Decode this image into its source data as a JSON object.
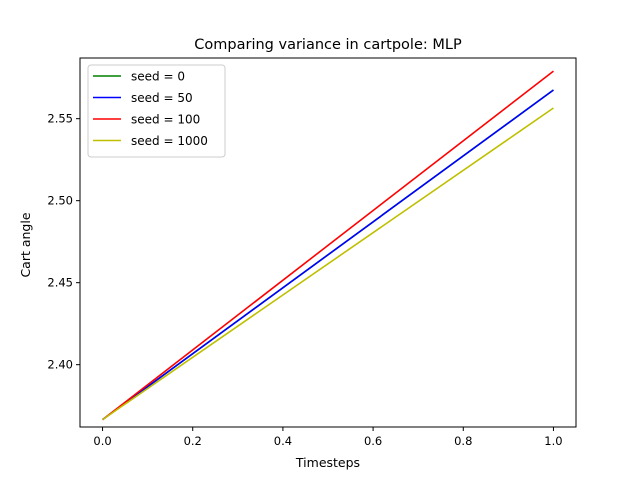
{
  "chart_data": {
    "type": "line",
    "title": "Comparing variance in cartpole: MLP",
    "xlabel": "Timesteps",
    "ylabel": "Cart angle",
    "xlim": [
      -0.05,
      1.05
    ],
    "ylim": [
      2.362,
      2.587
    ],
    "x_ticks": [
      0.0,
      0.2,
      0.4,
      0.6,
      0.8,
      1.0
    ],
    "x_tick_labels": [
      "0.0",
      "0.2",
      "0.4",
      "0.6",
      "0.8",
      "1.0"
    ],
    "y_ticks": [
      2.4,
      2.45,
      2.5,
      2.55
    ],
    "y_tick_labels": [
      "2.40",
      "2.45",
      "2.50",
      "2.55"
    ],
    "grid": false,
    "legend_position": "top-left",
    "series": [
      {
        "name": "seed = 0",
        "color": "#008000",
        "x": [
          0.0,
          1.0
        ],
        "y": [
          2.3665,
          2.5675
        ]
      },
      {
        "name": "seed = 50",
        "color": "#0000ff",
        "x": [
          0.0,
          1.0
        ],
        "y": [
          2.3665,
          2.5675
        ]
      },
      {
        "name": "seed = 100",
        "color": "#ff0000",
        "x": [
          0.0,
          1.0
        ],
        "y": [
          2.3665,
          2.579
        ]
      },
      {
        "name": "seed = 1000",
        "color": "#bfbf00",
        "x": [
          0.0,
          1.0
        ],
        "y": [
          2.3665,
          2.5565
        ]
      }
    ]
  }
}
